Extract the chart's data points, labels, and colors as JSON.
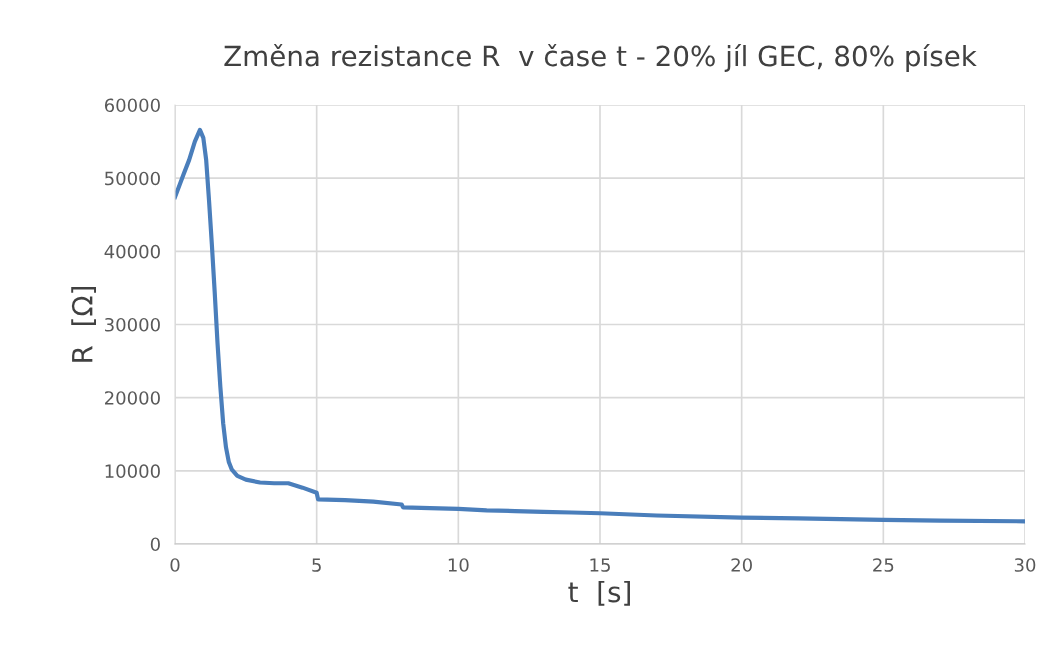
{
  "chart_data": {
    "type": "line",
    "title": "Změna rezistance R  v čase t - 20% jíl GEC, 80% písek",
    "xlabel": "t  [s]",
    "ylabel": "R  [Ω]",
    "series": [
      {
        "color": "#4a7ebb",
        "x": [
          0,
          0.3,
          0.5,
          0.7,
          0.88,
          1.0,
          1.1,
          1.2,
          1.3,
          1.4,
          1.5,
          1.6,
          1.7,
          1.8,
          1.9,
          2.0,
          2.2,
          2.5,
          3.0,
          3.5,
          4.0,
          4.5,
          5.0,
          5.05,
          6,
          7,
          8,
          8.05,
          9,
          10,
          11,
          12,
          13,
          14,
          15,
          17,
          20,
          22,
          25,
          27,
          30
        ],
        "values": [
          47400,
          50500,
          52500,
          55000,
          56600,
          55500,
          52500,
          47000,
          41000,
          34500,
          27500,
          21500,
          16500,
          13200,
          11200,
          10200,
          9300,
          8800,
          8400,
          8300,
          8300,
          7700,
          7000,
          6100,
          6000,
          5800,
          5400,
          5000,
          4900,
          4800,
          4600,
          4500,
          4400,
          4300,
          4200,
          3900,
          3600,
          3500,
          3300,
          3200,
          3100
        ]
      }
    ],
    "xlim": [
      0,
      30
    ],
    "xticks": [
      0,
      5,
      10,
      15,
      20,
      25,
      30
    ],
    "ylim": [
      0,
      60000
    ],
    "yticks": [
      0,
      10000,
      20000,
      30000,
      40000,
      50000,
      60000
    ],
    "grid": true,
    "legend": false,
    "marker": "none",
    "line_style": "solid"
  }
}
